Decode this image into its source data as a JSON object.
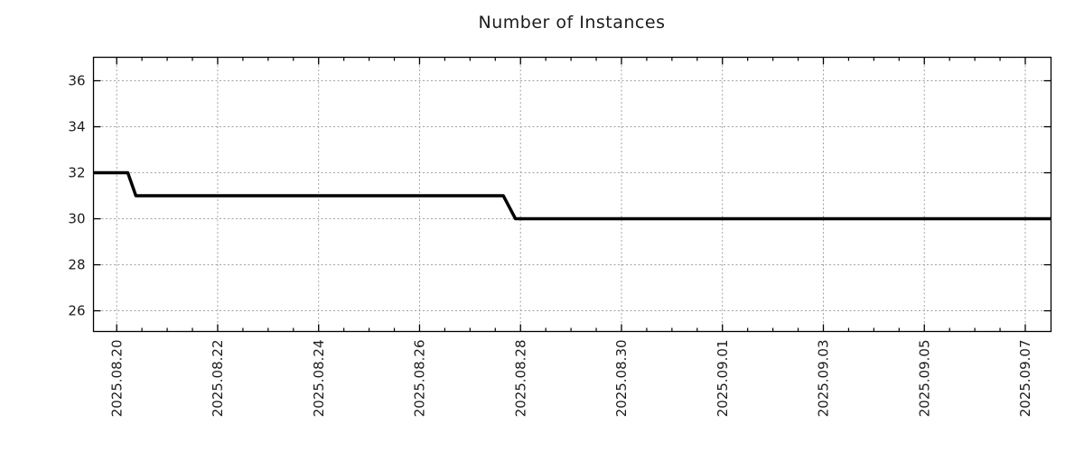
{
  "page": {
    "background": "#ffffff"
  },
  "chart_data": {
    "type": "line",
    "title": "Number of Instances",
    "x_axis": {
      "unit": "days since 2025-08-20 00:00",
      "lim": [
        -0.46,
        18.51
      ],
      "major_ticks": [
        0,
        2,
        4,
        6,
        8,
        10,
        12,
        14,
        16,
        18
      ],
      "major_tick_labels": [
        "2025.08.20",
        "2025.08.22",
        "2025.08.24",
        "2025.08.26",
        "2025.08.28",
        "2025.08.30",
        "2025.09.01",
        "2025.09.03",
        "2025.09.05",
        "2025.09.07"
      ],
      "minor_tick_step": 0.5,
      "label_rotation_deg": 90
    },
    "y_axis": {
      "lim": [
        25.1,
        37.02
      ],
      "ticks": [
        26,
        28,
        30,
        32,
        34,
        36
      ],
      "tick_labels": [
        "26",
        "28",
        "30",
        "32",
        "34",
        "36"
      ]
    },
    "grid": {
      "show": true,
      "color": "#a3a3a3",
      "dash": [
        2,
        2.5
      ]
    },
    "legend": {
      "show": false
    },
    "frame_color": "#000000",
    "tick_color": "#000000",
    "text_color": "#1c1c1c",
    "series": [
      {
        "name": "instances",
        "color": "#000000",
        "line_width": 3.5,
        "points": [
          {
            "x": -0.46,
            "y": 32
          },
          {
            "x": 0.22,
            "y": 32
          },
          {
            "x": 0.38,
            "y": 31
          },
          {
            "x": 7.66,
            "y": 31
          },
          {
            "x": 7.9,
            "y": 30
          },
          {
            "x": 18.51,
            "y": 30
          }
        ]
      }
    ]
  }
}
